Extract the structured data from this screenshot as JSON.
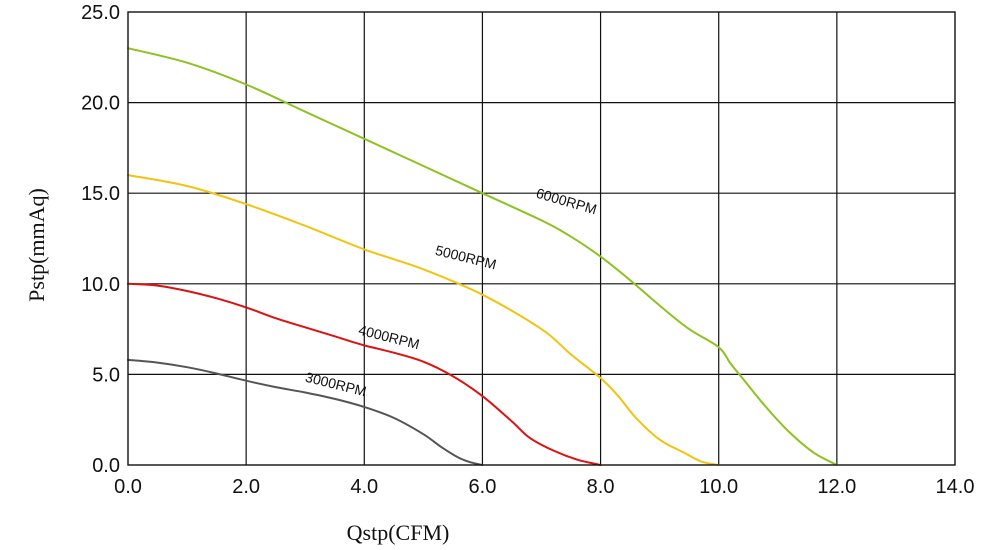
{
  "chart_data": {
    "type": "line",
    "xlabel": "Qstp(CFM)",
    "ylabel": "Pstp(mmAq)",
    "xlim": [
      0,
      14
    ],
    "ylim": [
      0,
      25
    ],
    "x_ticks": [
      0,
      2,
      4,
      6,
      8,
      10,
      12,
      14
    ],
    "x_tick_labels": [
      "0.0",
      "2.0",
      "4.0",
      "6.0",
      "8.0",
      "10.0",
      "12.0",
      "14.0"
    ],
    "y_ticks": [
      0,
      5,
      10,
      15,
      20,
      25
    ],
    "y_tick_labels": [
      "0.0",
      "5.0",
      "10.0",
      "15.0",
      "20.0",
      "25.0"
    ],
    "grid": true,
    "series": [
      {
        "name": "3000RPM",
        "color": "#555555",
        "x": [
          0.0,
          0.5,
          1.0,
          1.5,
          2.0,
          2.5,
          3.0,
          3.5,
          4.0,
          4.5,
          5.0,
          5.3,
          5.6,
          5.8,
          6.0
        ],
        "y": [
          5.8,
          5.65,
          5.4,
          5.05,
          4.65,
          4.3,
          4.0,
          3.65,
          3.2,
          2.6,
          1.7,
          1.0,
          0.4,
          0.15,
          0.0
        ]
      },
      {
        "name": "4000RPM",
        "color": "#dd1111",
        "x": [
          0.0,
          0.5,
          1.0,
          1.5,
          2.0,
          2.5,
          3.0,
          3.5,
          4.0,
          4.5,
          5.0,
          5.5,
          6.0,
          6.5,
          6.8,
          7.2,
          7.6,
          8.0
        ],
        "y": [
          10.0,
          9.9,
          9.6,
          9.2,
          8.7,
          8.1,
          7.6,
          7.1,
          6.6,
          6.2,
          5.7,
          4.9,
          3.8,
          2.4,
          1.5,
          0.8,
          0.3,
          0.0
        ]
      },
      {
        "name": "5000RPM",
        "color": "#f2c30f",
        "x": [
          0.0,
          1.0,
          2.0,
          3.0,
          4.0,
          5.0,
          6.0,
          7.0,
          7.5,
          8.0,
          8.3,
          8.6,
          9.0,
          9.4,
          9.7,
          10.0
        ],
        "y": [
          16.0,
          15.4,
          14.4,
          13.2,
          11.9,
          10.8,
          9.4,
          7.5,
          6.1,
          4.8,
          3.8,
          2.6,
          1.4,
          0.7,
          0.2,
          0.0
        ]
      },
      {
        "name": "6000RPM",
        "color": "#8dc21f",
        "x": [
          0.0,
          1.0,
          2.0,
          3.0,
          4.0,
          5.0,
          6.0,
          7.0,
          7.5,
          8.0,
          8.5,
          9.0,
          9.5,
          10.0,
          10.2,
          10.4,
          10.8,
          11.2,
          11.6,
          12.0
        ],
        "y": [
          23.0,
          22.2,
          21.0,
          19.5,
          18.0,
          16.5,
          15.0,
          13.5,
          12.6,
          11.5,
          10.2,
          8.8,
          7.5,
          6.5,
          5.6,
          4.8,
          3.2,
          1.8,
          0.7,
          0.0
        ]
      }
    ],
    "annotations": [
      {
        "text": "3000RPM",
        "x": 3.5,
        "y": 4.2,
        "angle": 14
      },
      {
        "text": "4000RPM",
        "x": 4.4,
        "y": 6.8,
        "angle": 14
      },
      {
        "text": "5000RPM",
        "x": 5.7,
        "y": 11.2,
        "angle": 14
      },
      {
        "text": "6000RPM",
        "x": 7.4,
        "y": 14.3,
        "angle": 16
      }
    ]
  }
}
